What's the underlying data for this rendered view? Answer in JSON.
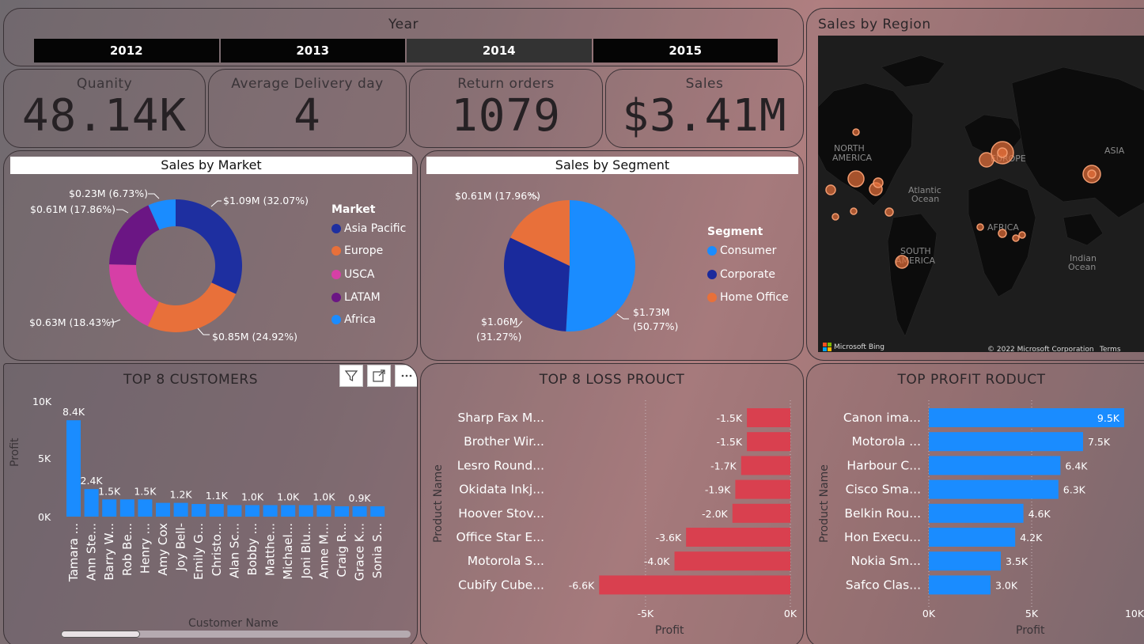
{
  "year_slicer": {
    "title": "Year",
    "options": [
      "2012",
      "2013",
      "2014",
      "2015"
    ],
    "selected": "2014"
  },
  "kpis": [
    {
      "label": "Quanity",
      "value": "48.14K"
    },
    {
      "label": "Average Delivery day",
      "value": "4"
    },
    {
      "label": "Return orders",
      "value": "1079"
    },
    {
      "label": "Sales",
      "value": "$3.41M"
    }
  ],
  "market_chart": {
    "title": "Sales by Market",
    "legend_title": "Market",
    "legend": [
      "Asia Pacific",
      "Europe",
      "USCA",
      "LATAM",
      "Africa"
    ],
    "labels": [
      "$1.09M (32.07%)",
      "$0.85M (24.92%)",
      "$0.63M (18.43%)",
      "$0.61M (17.86%)",
      "$0.23M (6.73%)"
    ]
  },
  "segment_chart": {
    "title": "Sales by Segment",
    "legend_title": "Segment",
    "legend": [
      "Consumer",
      "Corporate",
      "Home Office"
    ],
    "labels": [
      "$1.73M",
      "(50.77%)",
      "$1.06M",
      "(31.27%)",
      "$0.61M (17.96%)"
    ]
  },
  "region_map": {
    "title": "Sales by Region",
    "labels": [
      "NORTH",
      "AMERICA",
      "EUROPE",
      "ASIA",
      "Atlantic",
      "Ocean",
      "AFRICA",
      "SOUTH",
      "AMERICA",
      "Indian",
      "Ocean"
    ],
    "attribution": "Microsoft Bing",
    "copyright": "© 2022 Microsoft Corporation",
    "terms": "Terms"
  },
  "customers_chart": {
    "title": "TOP 8 CUSTOMERS",
    "x_axis_title": "Customer Name",
    "y_axis_title": "Profit",
    "y_ticks": [
      "10K",
      "5K",
      "0K"
    ],
    "names": [
      "Tamara ...",
      "Ann Ste...",
      "Barry W...",
      "Rob Be...",
      "Henry ...",
      "Amy Cox",
      "Joy Bell-",
      "Emily G...",
      "Christo...",
      "Alan Sc...",
      "Bobby ...",
      "Matthe...",
      "Michael...",
      "Joni Blu...",
      "Anne M...",
      "Craig R...",
      "Grace K...",
      "Sonia S..."
    ],
    "data_labels": [
      "8.4K",
      "2.4K",
      "1.5K",
      "1.5K",
      "1.2K",
      "1.1K",
      "1.0K",
      "1.0K",
      "1.0K",
      "0.9K"
    ]
  },
  "loss_chart": {
    "title": "TOP 8 LOSS PROUCT",
    "x_axis_title": "Profit",
    "y_axis_title": "Product Name",
    "x_ticks": [
      "-5K",
      "0K"
    ],
    "names": [
      "Sharp Fax M...",
      "Brother Wir...",
      "Lesro Round...",
      "Okidata Inkj...",
      "Hoover Stov...",
      "Office Star E...",
      "Motorola S...",
      "Cubify Cube..."
    ],
    "data_labels": [
      "-1.5K",
      "-1.5K",
      "-1.7K",
      "-1.9K",
      "-2.0K",
      "-3.6K",
      "-4.0K",
      "-6.6K"
    ]
  },
  "profit_chart": {
    "title": "TOP PROFIT RODUCT",
    "x_axis_title": "Profit",
    "y_axis_title": "Product Name",
    "x_ticks": [
      "0K",
      "5K",
      "10K"
    ],
    "names": [
      "Canon ima...",
      "Motorola ...",
      "Harbour C...",
      "Cisco Sma...",
      "Belkin Rou...",
      "Hon Execu...",
      "Nokia Sm...",
      "Safco Clas..."
    ],
    "data_labels": [
      "9.5K",
      "7.5K",
      "6.4K",
      "6.3K",
      "4.6K",
      "4.2K",
      "3.5K",
      "3.0K"
    ]
  },
  "chart_data": [
    {
      "type": "pie",
      "title": "Sales by Market",
      "categories": [
        "Asia Pacific",
        "Europe",
        "USCA",
        "LATAM",
        "Africa"
      ],
      "values": [
        1.09,
        0.85,
        0.63,
        0.61,
        0.23
      ],
      "percentages": [
        32.07,
        24.92,
        18.43,
        17.86,
        6.73
      ],
      "colors": [
        "#1e2fa0",
        "#e8703a",
        "#d63fa6",
        "#6b1684",
        "#1a8cff"
      ],
      "legend": "right"
    },
    {
      "type": "pie",
      "title": "Sales by Segment",
      "categories": [
        "Consumer",
        "Corporate",
        "Home Office"
      ],
      "values": [
        1.73,
        1.06,
        0.61
      ],
      "percentages": [
        50.77,
        31.27,
        17.96
      ],
      "colors": [
        "#1a8cff",
        "#1a2a9c",
        "#e8703a"
      ],
      "legend": "right"
    },
    {
      "type": "bar",
      "title": "TOP 8 CUSTOMERS",
      "categories": [
        "Tamara ...",
        "Ann Ste...",
        "Barry W...",
        "Rob Be...",
        "Henry ...",
        "Amy Cox",
        "Joy Bell-",
        "Emily G...",
        "Christo...",
        "Alan Sc...",
        "Bobby ...",
        "Matthe...",
        "Michael...",
        "Joni Blu...",
        "Anne M...",
        "Craig R...",
        "Grace K...",
        "Sonia S..."
      ],
      "values": [
        8.4,
        2.4,
        1.5,
        1.5,
        1.5,
        1.2,
        1.2,
        1.1,
        1.1,
        1.0,
        1.0,
        1.0,
        1.0,
        1.0,
        1.0,
        0.9,
        0.9,
        0.9
      ],
      "xlabel": "Customer Name",
      "ylabel": "Profit",
      "ylim": [
        0,
        10
      ],
      "color": "#1a8cff"
    },
    {
      "type": "bar",
      "title": "TOP 8 LOSS PROUCT",
      "orientation": "horizontal",
      "categories": [
        "Sharp Fax M...",
        "Brother Wir...",
        "Lesro Round...",
        "Okidata Inkj...",
        "Hoover Stov...",
        "Office Star E...",
        "Motorola S...",
        "Cubify Cube..."
      ],
      "values": [
        -1.5,
        -1.5,
        -1.7,
        -1.9,
        -2.0,
        -3.6,
        -4.0,
        -6.6
      ],
      "xlabel": "Profit",
      "ylabel": "Product Name",
      "xlim": [
        -6.8,
        0
      ],
      "color": "#d9404f"
    },
    {
      "type": "bar",
      "title": "TOP PROFIT RODUCT",
      "orientation": "horizontal",
      "categories": [
        "Canon ima...",
        "Motorola ...",
        "Harbour C...",
        "Cisco Sma...",
        "Belkin Rou...",
        "Hon Execu...",
        "Nokia Sm...",
        "Safco Clas..."
      ],
      "values": [
        9.5,
        7.5,
        6.4,
        6.3,
        4.6,
        4.2,
        3.5,
        3.0
      ],
      "xlabel": "Profit",
      "ylabel": "Product Name",
      "xlim": [
        0,
        10
      ],
      "color": "#1a8cff"
    }
  ]
}
